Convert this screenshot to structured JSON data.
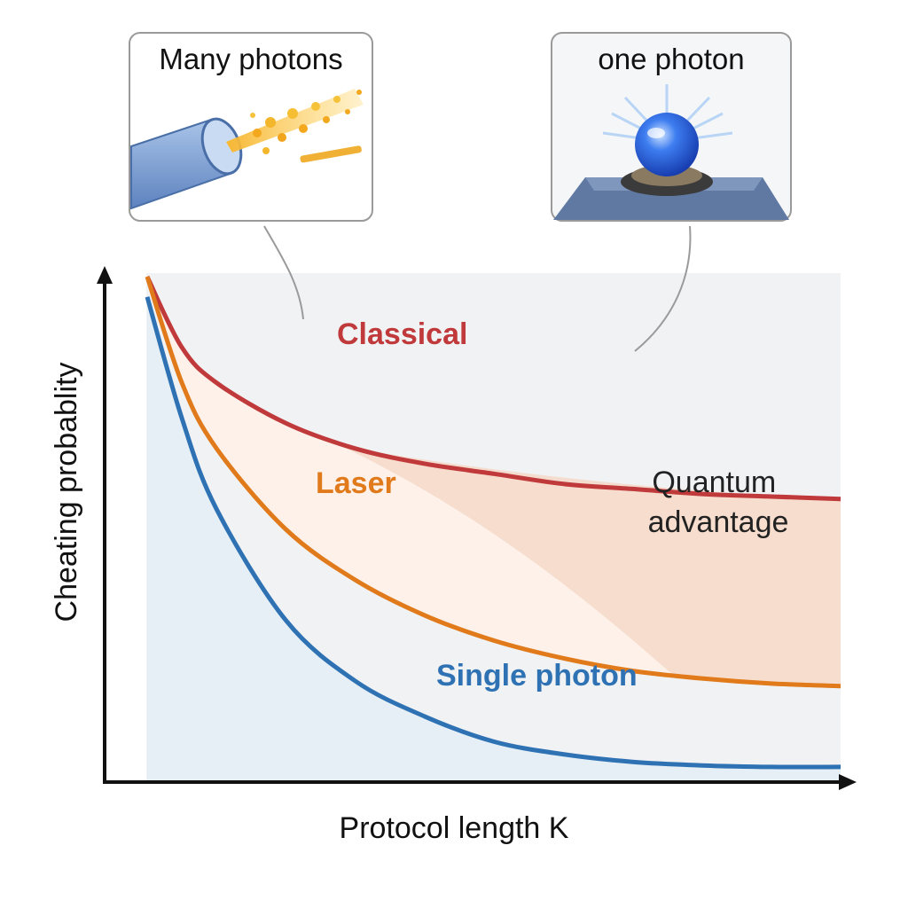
{
  "colors": {
    "classical": "#c0393b",
    "laser": "#e07a1a",
    "single_photon": "#2f72b4",
    "quantum_region": "#f4d9c8",
    "laser_band": "#fdf1ea",
    "single_band": "#e6eff5",
    "background_band": "#f1f2f4"
  },
  "insets": [
    {
      "title": "Many photons",
      "icon": "laser-beam-icon"
    },
    {
      "title": "one photon",
      "icon": "single-photon-source-icon"
    }
  ],
  "chart_data": {
    "type": "line",
    "title": "",
    "xlabel": "Protocol length K",
    "ylabel": "Cheating probablity",
    "x_ticks": [],
    "y_ticks": [],
    "grid": false,
    "x": [
      0,
      0.05,
      0.1,
      0.2,
      0.3,
      0.4,
      0.5,
      0.6,
      0.7,
      0.8,
      0.9,
      1.0
    ],
    "series": [
      {
        "name": "Classical",
        "key": "classical",
        "values": [
          1.0,
          0.86,
          0.79,
          0.71,
          0.66,
          0.63,
          0.61,
          0.59,
          0.58,
          0.57,
          0.565,
          0.56
        ]
      },
      {
        "name": "Laser",
        "key": "laser",
        "values": [
          1.0,
          0.79,
          0.66,
          0.5,
          0.4,
          0.33,
          0.28,
          0.245,
          0.22,
          0.205,
          0.195,
          0.19
        ]
      },
      {
        "name": "Single photon",
        "key": "single_photon",
        "values": [
          0.96,
          0.72,
          0.54,
          0.32,
          0.2,
          0.13,
          0.08,
          0.055,
          0.04,
          0.033,
          0.03,
          0.03
        ]
      }
    ],
    "annotations": [
      {
        "text_lines": [
          "Quantum",
          "advantage"
        ]
      }
    ]
  }
}
